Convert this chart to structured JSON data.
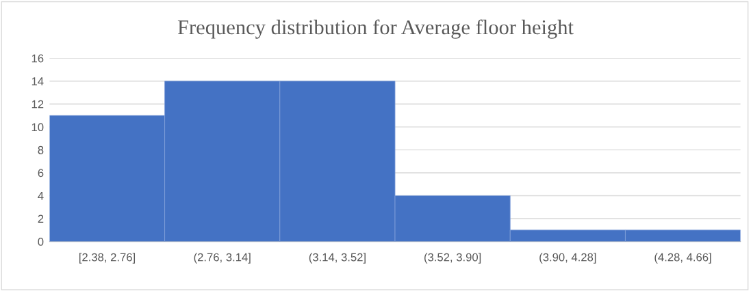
{
  "chart_data": {
    "type": "bar",
    "title": "Frequency distribution for Average floor height",
    "categories": [
      "[2.38, 2.76]",
      "(2.76, 3.14]",
      "(3.14, 3.52]",
      "(3.52, 3.90]",
      "(3.90, 4.28]",
      "(4.28, 4.66]"
    ],
    "values": [
      11,
      14,
      14,
      4,
      1,
      1
    ],
    "color": "#4472c4",
    "ylim": [
      0,
      16
    ],
    "yticks": [
      0,
      2,
      4,
      6,
      8,
      10,
      12,
      14,
      16
    ],
    "grid": "y"
  }
}
